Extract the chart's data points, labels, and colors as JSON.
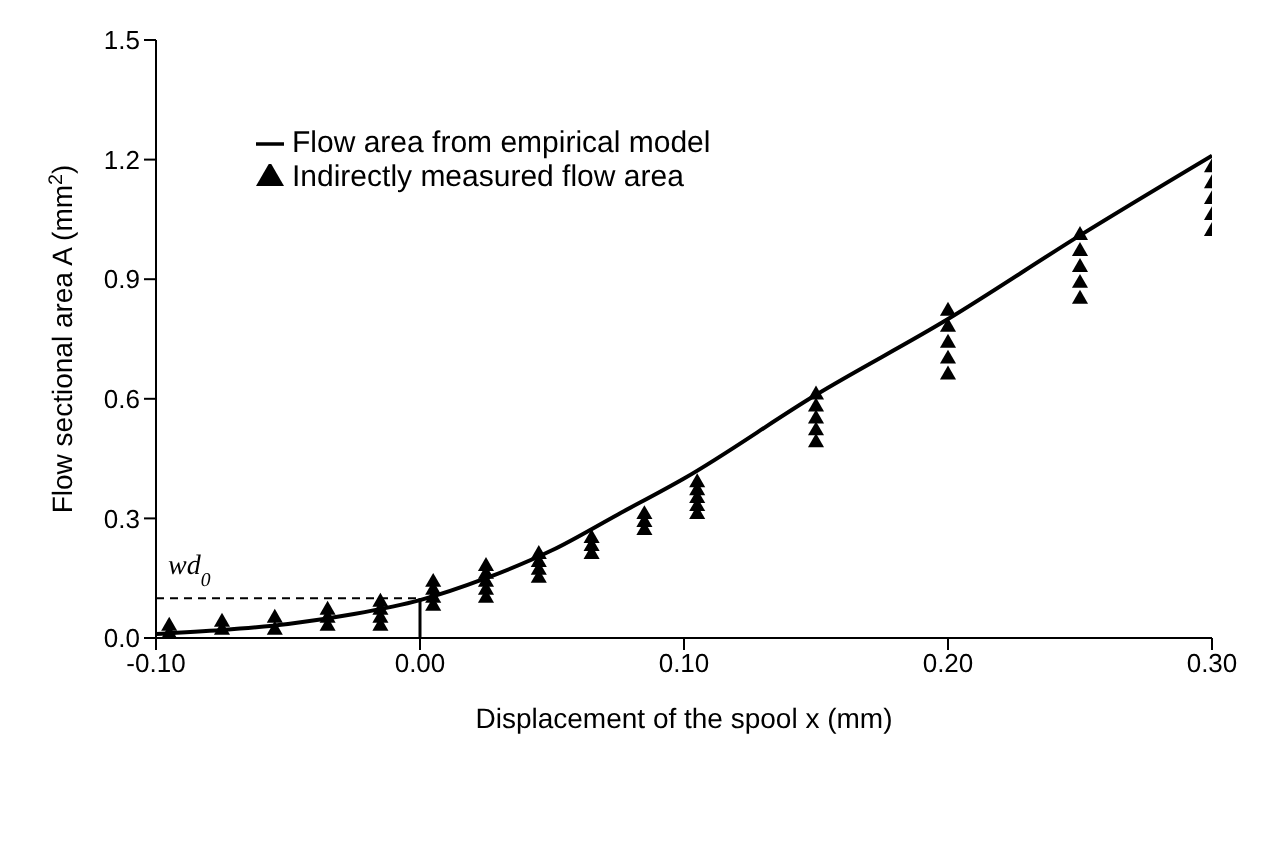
{
  "chart_data": {
    "type": "line",
    "xlabel": "Displacement of the spool x (mm)",
    "ylabel": "Flow sectional area A (mm$^{2}$)",
    "xlim": [
      -0.1,
      0.3
    ],
    "xticks": [
      {
        "value": -0.1,
        "label": "-0.10"
      },
      {
        "value": 0,
        "label": "0.00"
      },
      {
        "value": 0.1,
        "label": "0.10"
      },
      {
        "value": 0.2,
        "label": "0.20"
      },
      {
        "value": 0.3,
        "label": "0.30"
      }
    ],
    "ylim": [
      0,
      1.5
    ],
    "yticks": [
      {
        "value": 0,
        "label": "0.0"
      },
      0.3,
      0.6,
      0.9,
      1.2,
      1.5
    ],
    "grid": false,
    "legend": "top left",
    "series": [
      {
        "name": "Flow area from empirical model",
        "color": "#000000",
        "marker": "none",
        "line_style": "solid",
        "x": [
          -0.1,
          -0.075,
          -0.05,
          -0.025,
          0,
          0.025,
          0.05,
          0.075,
          0.1,
          0.15,
          0.2,
          0.25,
          0.3
        ],
        "values": [
          0.01,
          0.02,
          0.035,
          0.06,
          0.095,
          0.15,
          0.22,
          0.31,
          0.4,
          0.61,
          0.8,
          1.01,
          1.21
        ]
      },
      {
        "name": "Indirectly measured flow area",
        "type": "scatter",
        "color": "#000000",
        "marker": "triangle",
        "x": [
          -0.095,
          -0.095,
          -0.075,
          -0.075,
          -0.055,
          -0.055,
          -0.035,
          -0.035,
          -0.035,
          -0.015,
          -0.015,
          -0.015,
          -0.015,
          0.005,
          0.005,
          0.005,
          0.005,
          0.025,
          0.025,
          0.025,
          0.025,
          0.025,
          0.045,
          0.045,
          0.045,
          0.045,
          0.065,
          0.065,
          0.065,
          0.085,
          0.085,
          0.085,
          0.105,
          0.105,
          0.105,
          0.105,
          0.105,
          0.15,
          0.15,
          0.15,
          0.15,
          0.15,
          0.2,
          0.2,
          0.2,
          0.2,
          0.2,
          0.25,
          0.25,
          0.25,
          0.25,
          0.25,
          0.3,
          0.3,
          0.3,
          0.3,
          0.3
        ],
        "values": [
          0.01,
          0.03,
          0.02,
          0.04,
          0.02,
          0.05,
          0.03,
          0.05,
          0.07,
          0.03,
          0.05,
          0.07,
          0.09,
          0.08,
          0.1,
          0.12,
          0.14,
          0.1,
          0.12,
          0.14,
          0.16,
          0.18,
          0.15,
          0.17,
          0.19,
          0.21,
          0.21,
          0.23,
          0.25,
          0.27,
          0.29,
          0.31,
          0.31,
          0.33,
          0.35,
          0.37,
          0.39,
          0.49,
          0.52,
          0.55,
          0.58,
          0.61,
          0.66,
          0.7,
          0.74,
          0.78,
          0.82,
          0.85,
          0.89,
          0.93,
          0.97,
          1.01,
          1.02,
          1.06,
          1.1,
          1.14,
          1.18
        ]
      }
    ],
    "annotations": [
      {
        "text": "wd$_{0}$",
        "x": 0,
        "y": 0.1
      }
    ]
  }
}
